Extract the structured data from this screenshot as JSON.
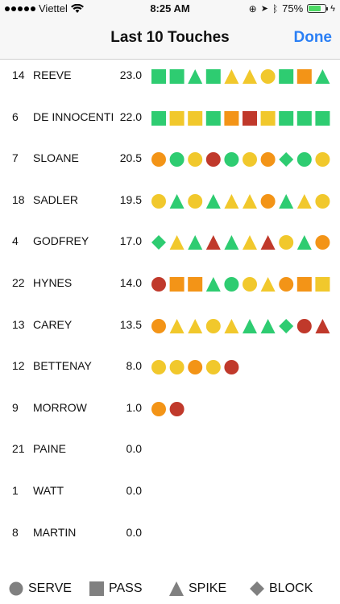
{
  "status_bar": {
    "carrier": "Viettel",
    "time": "8:25 AM",
    "battery": "75%"
  },
  "nav": {
    "title": "Last 10 Touches",
    "done": "Done"
  },
  "colors": {
    "green": "#2ecc71",
    "yellow": "#f1c82c",
    "orange": "#f39417",
    "red": "#c0392b",
    "legend_gray": "#808080",
    "accent": "#2a7ff5"
  },
  "players": [
    {
      "number": "14",
      "name": "REEVE",
      "score": "23.0",
      "touches": [
        "sq-g",
        "sq-g",
        "tri-g",
        "sq-g",
        "tri-y",
        "tri-y",
        "c-y",
        "sq-g",
        "sq-o",
        "tri-g"
      ]
    },
    {
      "number": "6",
      "name": "DE INNOCENTI",
      "score": "22.0",
      "touches": [
        "sq-g",
        "sq-y",
        "sq-y",
        "sq-g",
        "sq-o",
        "sq-r",
        "sq-y",
        "sq-g",
        "sq-g",
        "sq-g"
      ]
    },
    {
      "number": "7",
      "name": "SLOANE",
      "score": "20.5",
      "touches": [
        "c-o",
        "c-g",
        "c-y",
        "c-r",
        "c-g",
        "c-y",
        "c-o",
        "d-g",
        "c-g",
        "c-y"
      ]
    },
    {
      "number": "18",
      "name": "SADLER",
      "score": "19.5",
      "touches": [
        "c-y",
        "tri-g",
        "c-y",
        "tri-g",
        "tri-y",
        "tri-y",
        "c-o",
        "tri-g",
        "tri-y",
        "c-y"
      ]
    },
    {
      "number": "4",
      "name": "GODFREY",
      "score": "17.0",
      "touches": [
        "d-g",
        "tri-y",
        "tri-g",
        "tri-r",
        "tri-g",
        "tri-y",
        "tri-r",
        "c-y",
        "tri-g",
        "c-o"
      ]
    },
    {
      "number": "22",
      "name": "HYNES",
      "score": "14.0",
      "touches": [
        "c-r",
        "sq-o",
        "sq-o",
        "tri-g",
        "c-g",
        "c-y",
        "tri-y",
        "c-o",
        "sq-o",
        "sq-y"
      ]
    },
    {
      "number": "13",
      "name": "CAREY",
      "score": "13.5",
      "touches": [
        "c-o",
        "tri-y",
        "tri-y",
        "c-y",
        "tri-y",
        "tri-g",
        "tri-g",
        "d-g",
        "c-r",
        "tri-r"
      ]
    },
    {
      "number": "12",
      "name": "BETTENAY",
      "score": "8.0",
      "touches": [
        "c-y",
        "c-y",
        "c-o",
        "c-y",
        "c-r"
      ]
    },
    {
      "number": "9",
      "name": "MORROW",
      "score": "1.0",
      "touches": [
        "c-o",
        "c-r"
      ]
    },
    {
      "number": "21",
      "name": "PAINE",
      "score": "0.0",
      "touches": []
    },
    {
      "number": "1",
      "name": "WATT",
      "score": "0.0",
      "touches": []
    },
    {
      "number": "8",
      "name": "MARTIN",
      "score": "0.0",
      "touches": []
    }
  ],
  "legend": {
    "serve": "SERVE",
    "pass": "PASS",
    "spike": "SPIKE",
    "block": "BLOCK"
  }
}
